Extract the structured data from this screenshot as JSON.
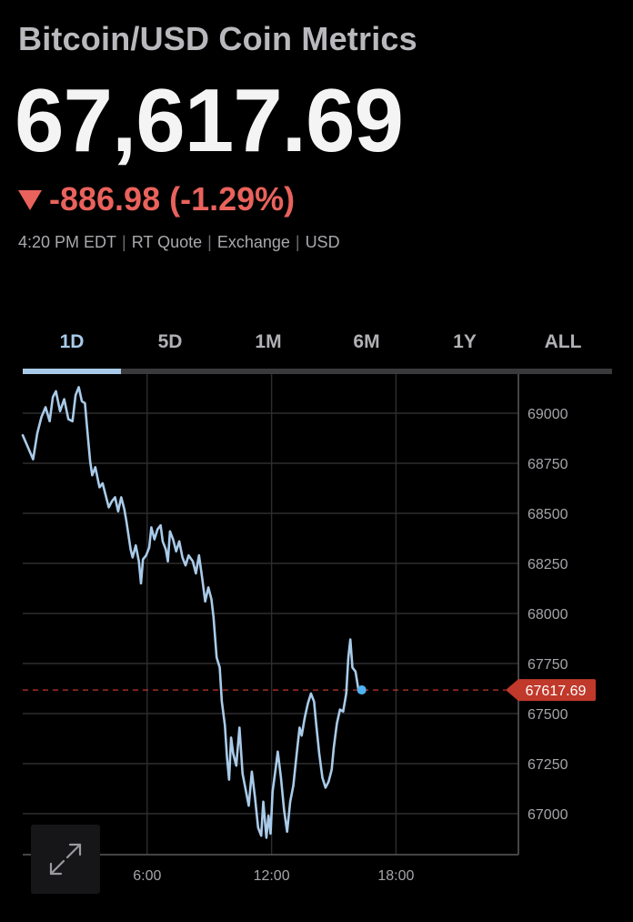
{
  "header": {
    "title": "Bitcoin/USD Coin Metrics",
    "price": "67,617.69",
    "change": "-886.98 (-1.29%)",
    "change_color": "#e9625c",
    "meta": [
      "4:20 PM EDT",
      "RT Quote",
      "Exchange",
      "USD"
    ]
  },
  "tabs": [
    {
      "label": "1D",
      "active": true
    },
    {
      "label": "5D",
      "active": false
    },
    {
      "label": "1M",
      "active": false
    },
    {
      "label": "6M",
      "active": false
    },
    {
      "label": "1Y",
      "active": false
    },
    {
      "label": "ALL",
      "active": false
    }
  ],
  "chart_data": {
    "type": "line",
    "xlabel": "",
    "ylabel": "",
    "xlim": [
      0,
      24
    ],
    "ylim": [
      66800,
      69250
    ],
    "x_ticks": [
      {
        "value": 6,
        "label": "6:00"
      },
      {
        "value": 12,
        "label": "12:00"
      },
      {
        "value": 18,
        "label": "18:00"
      }
    ],
    "y_ticks": [
      67000,
      67250,
      67500,
      67750,
      68000,
      68250,
      68500,
      68750,
      69000
    ],
    "y_tick_labels": [
      "67000",
      "67250",
      "67500",
      "67750",
      "68000",
      "68250",
      "68500",
      "68750",
      "69000"
    ],
    "grid": true,
    "line_color": "#a9cbe9",
    "reference_line": {
      "value": 67617.69,
      "label": "67617.69",
      "color": "#c0392b"
    },
    "series": [
      {
        "values": [
          [
            0.0,
            68890
          ],
          [
            0.25,
            68830
          ],
          [
            0.5,
            68770
          ],
          [
            0.7,
            68900
          ],
          [
            0.9,
            68980
          ],
          [
            1.1,
            69030
          ],
          [
            1.3,
            68960
          ],
          [
            1.45,
            69080
          ],
          [
            1.6,
            69110
          ],
          [
            1.8,
            69010
          ],
          [
            2.0,
            69070
          ],
          [
            2.2,
            68970
          ],
          [
            2.4,
            68960
          ],
          [
            2.55,
            69090
          ],
          [
            2.7,
            69130
          ],
          [
            2.85,
            69060
          ],
          [
            3.0,
            69050
          ],
          [
            3.1,
            68930
          ],
          [
            3.25,
            68760
          ],
          [
            3.35,
            68690
          ],
          [
            3.5,
            68730
          ],
          [
            3.7,
            68630
          ],
          [
            3.85,
            68650
          ],
          [
            4.0,
            68590
          ],
          [
            4.15,
            68530
          ],
          [
            4.3,
            68560
          ],
          [
            4.45,
            68580
          ],
          [
            4.6,
            68510
          ],
          [
            4.75,
            68580
          ],
          [
            4.9,
            68520
          ],
          [
            5.0,
            68460
          ],
          [
            5.1,
            68390
          ],
          [
            5.2,
            68320
          ],
          [
            5.3,
            68280
          ],
          [
            5.45,
            68340
          ],
          [
            5.6,
            68260
          ],
          [
            5.7,
            68150
          ],
          [
            5.8,
            68270
          ],
          [
            5.95,
            68290
          ],
          [
            6.1,
            68330
          ],
          [
            6.2,
            68430
          ],
          [
            6.35,
            68370
          ],
          [
            6.5,
            68420
          ],
          [
            6.65,
            68440
          ],
          [
            6.75,
            68360
          ],
          [
            6.9,
            68320
          ],
          [
            7.0,
            68260
          ],
          [
            7.1,
            68410
          ],
          [
            7.25,
            68370
          ],
          [
            7.4,
            68310
          ],
          [
            7.55,
            68360
          ],
          [
            7.7,
            68280
          ],
          [
            7.85,
            68240
          ],
          [
            8.0,
            68290
          ],
          [
            8.2,
            68260
          ],
          [
            8.35,
            68200
          ],
          [
            8.5,
            68290
          ],
          [
            8.65,
            68180
          ],
          [
            8.8,
            68060
          ],
          [
            8.95,
            68130
          ],
          [
            9.1,
            68070
          ],
          [
            9.2,
            67980
          ],
          [
            9.35,
            67780
          ],
          [
            9.5,
            67730
          ],
          [
            9.6,
            67560
          ],
          [
            9.75,
            67440
          ],
          [
            9.85,
            67280
          ],
          [
            9.95,
            67170
          ],
          [
            10.05,
            67380
          ],
          [
            10.15,
            67300
          ],
          [
            10.3,
            67240
          ],
          [
            10.45,
            67430
          ],
          [
            10.6,
            67200
          ],
          [
            10.75,
            67120
          ],
          [
            10.9,
            67040
          ],
          [
            11.05,
            67210
          ],
          [
            11.2,
            67080
          ],
          [
            11.35,
            66930
          ],
          [
            11.5,
            66890
          ],
          [
            11.6,
            67060
          ],
          [
            11.75,
            66880
          ],
          [
            11.85,
            66990
          ],
          [
            11.95,
            66900
          ],
          [
            12.05,
            67110
          ],
          [
            12.2,
            67230
          ],
          [
            12.3,
            67310
          ],
          [
            12.45,
            67180
          ],
          [
            12.6,
            67020
          ],
          [
            12.75,
            66910
          ],
          [
            12.9,
            67060
          ],
          [
            13.05,
            67140
          ],
          [
            13.2,
            67290
          ],
          [
            13.35,
            67430
          ],
          [
            13.45,
            67390
          ],
          [
            13.6,
            67480
          ],
          [
            13.75,
            67550
          ],
          [
            13.9,
            67600
          ],
          [
            14.05,
            67560
          ],
          [
            14.15,
            67450
          ],
          [
            14.3,
            67300
          ],
          [
            14.45,
            67180
          ],
          [
            14.6,
            67130
          ],
          [
            14.75,
            67160
          ],
          [
            14.9,
            67220
          ],
          [
            15.0,
            67330
          ],
          [
            15.15,
            67450
          ],
          [
            15.3,
            67520
          ],
          [
            15.45,
            67510
          ],
          [
            15.6,
            67600
          ],
          [
            15.7,
            67780
          ],
          [
            15.8,
            67870
          ],
          [
            15.9,
            67730
          ],
          [
            16.05,
            67710
          ],
          [
            16.2,
            67610
          ],
          [
            16.35,
            67618
          ]
        ]
      }
    ],
    "last_point_color": "#4fb3f2"
  }
}
